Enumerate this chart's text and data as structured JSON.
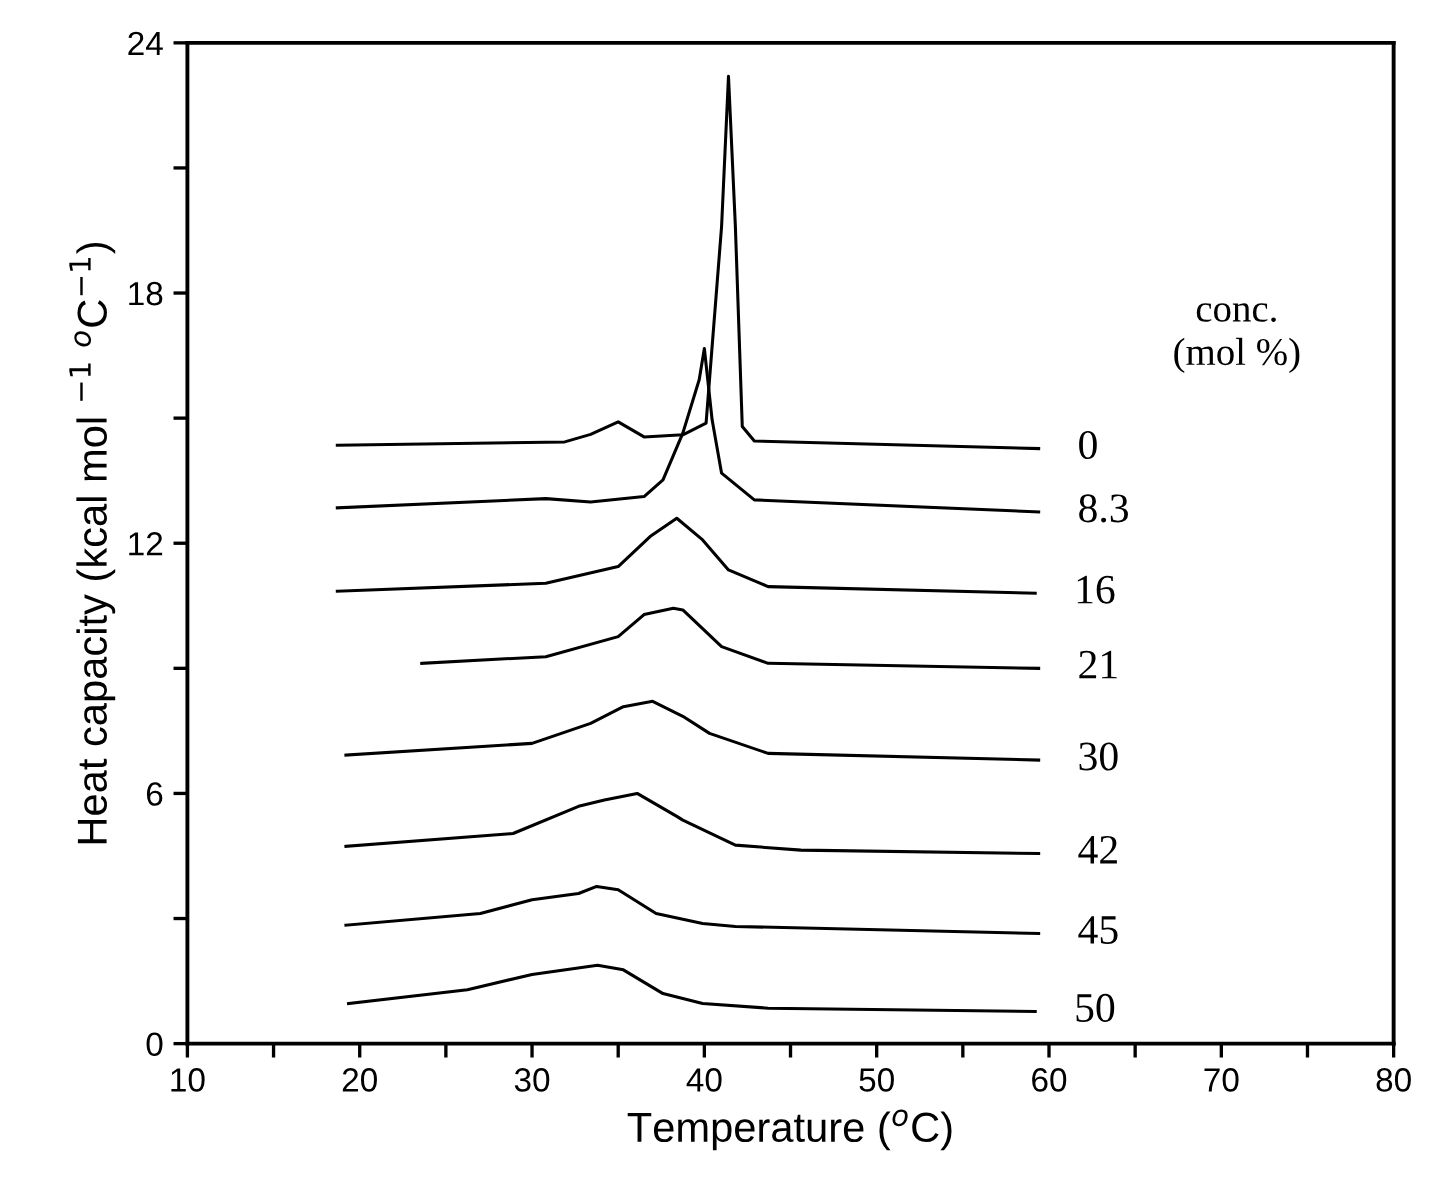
{
  "chart_data": {
    "type": "line",
    "xlabel": "Temperature ($^{o}$C)",
    "ylabel": "Heat capacity (kcal mol $^{−1}$ $^{o}$C$^{−1}$)",
    "legend_title": "conc.\n(mol %)",
    "legend": false,
    "grid": false,
    "marker": "none",
    "line_style": "solid",
    "xlim": [
      10,
      80
    ],
    "ylim": [
      0,
      24
    ],
    "xticks": [
      10,
      {
        "value": 15,
        "label": null
      },
      20,
      {
        "value": 25,
        "label": null
      },
      30,
      {
        "value": 35,
        "label": null
      },
      40,
      {
        "value": 45,
        "label": null
      },
      50,
      {
        "value": 55,
        "label": null
      },
      60,
      {
        "value": 65,
        "label": null
      },
      70,
      {
        "value": 75,
        "label": null
      },
      80
    ],
    "yticks": [
      0,
      {
        "value": 3,
        "label": null
      },
      6,
      {
        "value": 9,
        "label": null
      },
      12,
      {
        "value": 15,
        "label": null
      },
      18,
      {
        "value": 21,
        "label": null
      },
      24
    ],
    "series": [
      {
        "name": "0",
        "color": "#000000",
        "x": [
          18.7,
          31.9,
          33.4,
          35.0,
          36.5,
          38.75,
          40.1,
          41.0,
          41.4,
          41.8,
          42.2,
          42.9,
          59.4
        ],
        "values": [
          14.35,
          14.43,
          14.61,
          14.91,
          14.55,
          14.6,
          14.88,
          19.6,
          23.2,
          19.6,
          14.8,
          14.45,
          14.27
        ]
      },
      {
        "name": "8.3",
        "color": "#000000",
        "x": [
          18.7,
          30.8,
          33.4,
          36.5,
          37.6,
          38.75,
          39.7,
          40.0,
          40.45,
          41.0,
          42.9,
          59.4
        ],
        "values": [
          12.85,
          13.07,
          12.99,
          13.12,
          13.52,
          14.64,
          15.92,
          16.67,
          14.96,
          13.68,
          13.04,
          12.75
        ]
      },
      {
        "name": "16",
        "color": "#000000",
        "x": [
          18.7,
          30.8,
          35.0,
          36.85,
          38.4,
          39.9,
          41.4,
          43.7,
          59.2
        ],
        "values": [
          10.85,
          11.04,
          11.44,
          12.16,
          12.6,
          12.08,
          11.36,
          10.96,
          10.8
        ]
      },
      {
        "name": "21",
        "color": "#000000",
        "x": [
          23.6,
          30.8,
          35.0,
          36.5,
          38.2,
          38.75,
          41.0,
          43.7,
          59.4
        ],
        "values": [
          9.12,
          9.28,
          9.76,
          10.29,
          10.44,
          10.4,
          9.52,
          9.12,
          9.0
        ]
      },
      {
        "name": "30",
        "color": "#000000",
        "x": [
          19.2,
          30.0,
          33.4,
          35.3,
          37.0,
          38.75,
          40.3,
          43.7,
          59.4
        ],
        "values": [
          6.92,
          7.2,
          7.68,
          8.08,
          8.21,
          7.85,
          7.44,
          6.96,
          6.8
        ]
      },
      {
        "name": "42",
        "color": "#000000",
        "x": [
          19.2,
          28.9,
          32.7,
          34.2,
          36.1,
          38.4,
          38.75,
          41.8,
          45.6,
          59.4
        ],
        "values": [
          4.73,
          5.04,
          5.69,
          5.84,
          6.0,
          5.45,
          5.36,
          4.76,
          4.64,
          4.56
        ]
      },
      {
        "name": "45",
        "color": "#000000",
        "x": [
          19.2,
          27.0,
          30.0,
          32.7,
          33.75,
          35.0,
          37.2,
          39.9,
          41.8,
          59.4
        ],
        "values": [
          2.84,
          3.12,
          3.45,
          3.6,
          3.77,
          3.69,
          3.12,
          2.88,
          2.81,
          2.64
        ]
      },
      {
        "name": "50",
        "color": "#000000",
        "x": [
          19.35,
          26.25,
          30.0,
          33.8,
          35.3,
          37.6,
          39.9,
          43.7,
          59.2
        ],
        "values": [
          0.96,
          1.29,
          1.66,
          1.88,
          1.77,
          1.2,
          0.96,
          0.85,
          0.77
        ]
      }
    ]
  }
}
